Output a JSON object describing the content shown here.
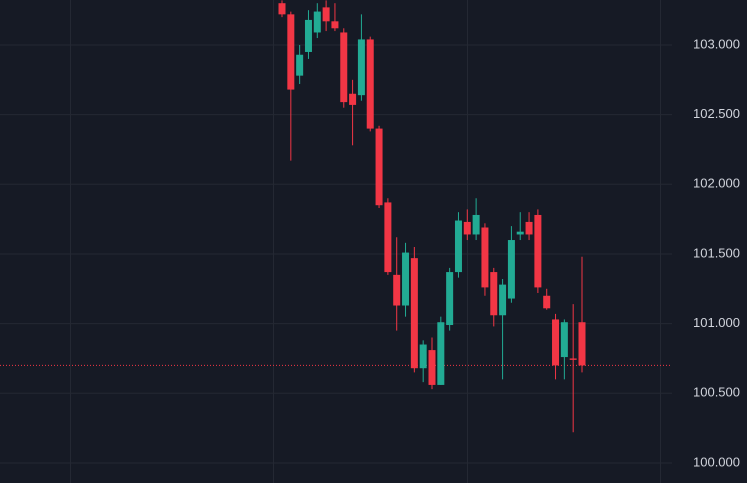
{
  "chart_data": {
    "type": "candlestick",
    "categories": [
      null,
      null,
      null,
      null,
      null,
      null,
      null,
      null,
      null,
      null,
      null,
      null,
      null,
      null,
      null,
      null,
      null,
      null,
      null,
      null,
      null,
      null,
      null,
      null,
      null,
      null,
      null,
      null,
      null,
      null,
      null,
      null,
      null,
      null,
      null
    ],
    "open": [
      103.3,
      103.22,
      102.78,
      102.95,
      103.09,
      103.27,
      103.17,
      103.09,
      102.65,
      102.64,
      103.04,
      102.4,
      101.87,
      101.35,
      101.13,
      101.47,
      100.68,
      100.81,
      100.56,
      100.99,
      101.37,
      101.73,
      101.64,
      101.69,
      101.37,
      101.06,
      101.18,
      101.64,
      101.73,
      101.78,
      101.2,
      101.03,
      100.76,
      100.75,
      101.01
    ],
    "high": [
      103.32,
      103.24,
      103.0,
      103.25,
      103.3,
      103.32,
      103.3,
      103.12,
      102.75,
      103.22,
      103.06,
      102.42,
      101.9,
      101.62,
      101.58,
      101.55,
      100.88,
      100.9,
      101.05,
      101.4,
      101.8,
      101.82,
      101.9,
      101.72,
      101.4,
      101.32,
      101.7,
      101.8,
      101.8,
      101.82,
      101.25,
      101.07,
      101.03,
      101.14,
      101.48
    ],
    "low": [
      103.2,
      102.17,
      102.72,
      102.9,
      103.05,
      103.1,
      103.1,
      102.55,
      102.28,
      102.6,
      102.38,
      101.83,
      101.35,
      100.95,
      101.05,
      100.65,
      100.58,
      100.53,
      100.56,
      100.95,
      101.33,
      101.6,
      101.6,
      101.2,
      100.98,
      100.6,
      101.15,
      101.6,
      101.6,
      101.22,
      101.1,
      100.6,
      100.6,
      100.22,
      100.65
    ],
    "close": [
      103.22,
      102.68,
      102.93,
      103.18,
      103.24,
      103.17,
      103.12,
      102.59,
      102.57,
      103.04,
      102.4,
      101.85,
      101.37,
      101.13,
      101.51,
      100.68,
      100.85,
      100.56,
      101.01,
      101.37,
      101.74,
      101.64,
      101.78,
      101.26,
      101.06,
      101.28,
      101.6,
      101.66,
      101.64,
      101.26,
      101.11,
      100.7,
      101.01,
      100.74,
      100.7
    ],
    "up_color": "#22ab94",
    "down_color": "#f23645",
    "ylim": [
      99.856,
      103.323
    ],
    "yticks": [
      {
        "value": 100,
        "label": "100.000"
      },
      {
        "value": 100.5,
        "label": "100.500"
      },
      {
        "value": 101,
        "label": "101.000"
      },
      {
        "value": 101.5,
        "label": "101.500"
      },
      {
        "value": 102,
        "label": "102.000"
      },
      {
        "value": 102.5,
        "label": "102.500"
      },
      {
        "value": 103,
        "label": "103.000"
      }
    ],
    "grid": true,
    "price_line": 100.7,
    "price_line_color": "#f23645"
  }
}
